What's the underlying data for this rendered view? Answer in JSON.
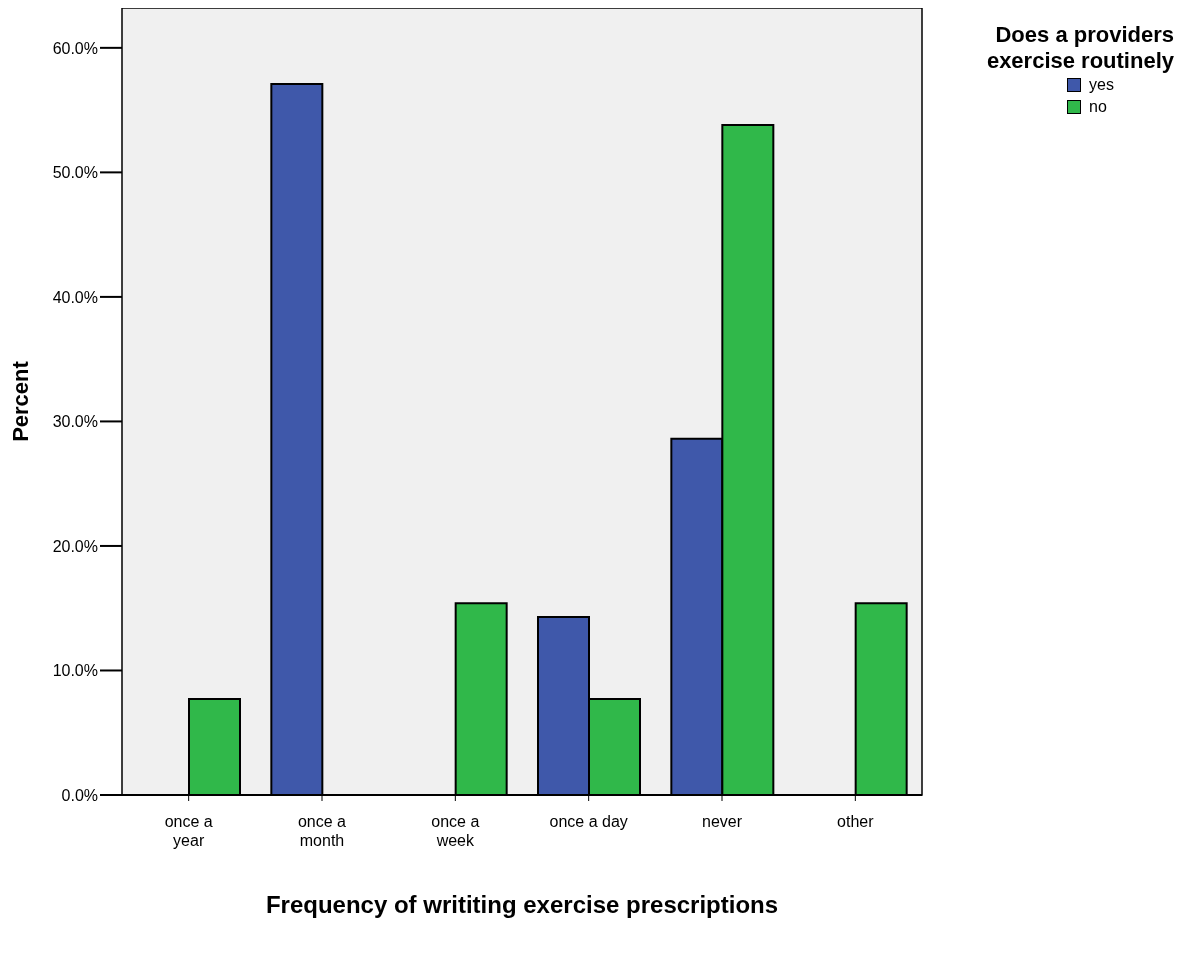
{
  "chart_data": {
    "type": "bar",
    "xlabel": "Frequency of writiting exercise prescriptions",
    "ylabel": "Percent",
    "legend_title": "Does a providers exercise routinely",
    "categories": [
      "once a year",
      "once a month",
      "once a week",
      "once a day",
      "never",
      "other"
    ],
    "series": [
      {
        "name": "yes",
        "color": "#3f58aa",
        "values": [
          0,
          57.1,
          0,
          14.3,
          28.6,
          0
        ]
      },
      {
        "name": "no",
        "color": "#30b84a",
        "values": [
          7.7,
          0,
          15.4,
          7.7,
          53.8,
          15.4
        ]
      }
    ],
    "ylim": [
      0,
      63.2
    ],
    "yticks": [
      {
        "value": 0,
        "label": "0.0%"
      },
      {
        "value": 10,
        "label": "10.0%"
      },
      {
        "value": 20,
        "label": "20.0%"
      },
      {
        "value": 30,
        "label": "30.0%"
      },
      {
        "value": 40,
        "label": "40.0%"
      },
      {
        "value": 50,
        "label": "50.0%"
      },
      {
        "value": 60,
        "label": "60.0%"
      }
    ],
    "grid": false,
    "legend": "top right"
  }
}
